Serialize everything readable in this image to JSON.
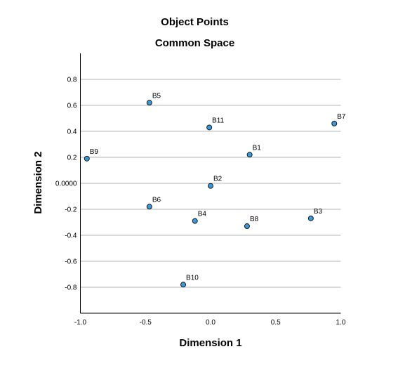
{
  "chart_data": {
    "type": "scatter",
    "title": "Object Points",
    "subtitle": "Common Space",
    "xlabel": "Dimension 1",
    "ylabel": "Dimension 2",
    "xlim": [
      -1.0,
      1.0
    ],
    "ylim": [
      -1.0,
      1.0
    ],
    "x_ticks": [
      -1.0,
      -0.5,
      0.0,
      0.5,
      1.0
    ],
    "x_tick_labels": [
      "-1.0",
      "-0.5",
      "0.0",
      "0.5",
      "1.0"
    ],
    "y_ticks": [
      0.8,
      0.6,
      0.4,
      0.2,
      0.0,
      -0.2,
      -0.4,
      -0.6,
      -0.8
    ],
    "y_tick_labels": [
      "0.8",
      "0.6",
      "0.4",
      "0.2",
      "0.0000",
      "-0.2",
      "-0.4",
      "-0.6",
      "-0.8"
    ],
    "grid": "horizontal",
    "marker_color": "#3a9ad9",
    "points": [
      {
        "label": "B1",
        "x": 0.3,
        "y": 0.22
      },
      {
        "label": "B2",
        "x": 0.0,
        "y": -0.02
      },
      {
        "label": "B3",
        "x": 0.77,
        "y": -0.27
      },
      {
        "label": "B4",
        "x": -0.12,
        "y": -0.29
      },
      {
        "label": "B5",
        "x": -0.47,
        "y": 0.62
      },
      {
        "label": "B6",
        "x": -0.47,
        "y": -0.18
      },
      {
        "label": "B7",
        "x": 0.95,
        "y": 0.46
      },
      {
        "label": "B8",
        "x": 0.28,
        "y": -0.33
      },
      {
        "label": "B9",
        "x": -0.95,
        "y": 0.19
      },
      {
        "label": "B10",
        "x": -0.21,
        "y": -0.78
      },
      {
        "label": "B11",
        "x": -0.01,
        "y": 0.43
      }
    ]
  }
}
